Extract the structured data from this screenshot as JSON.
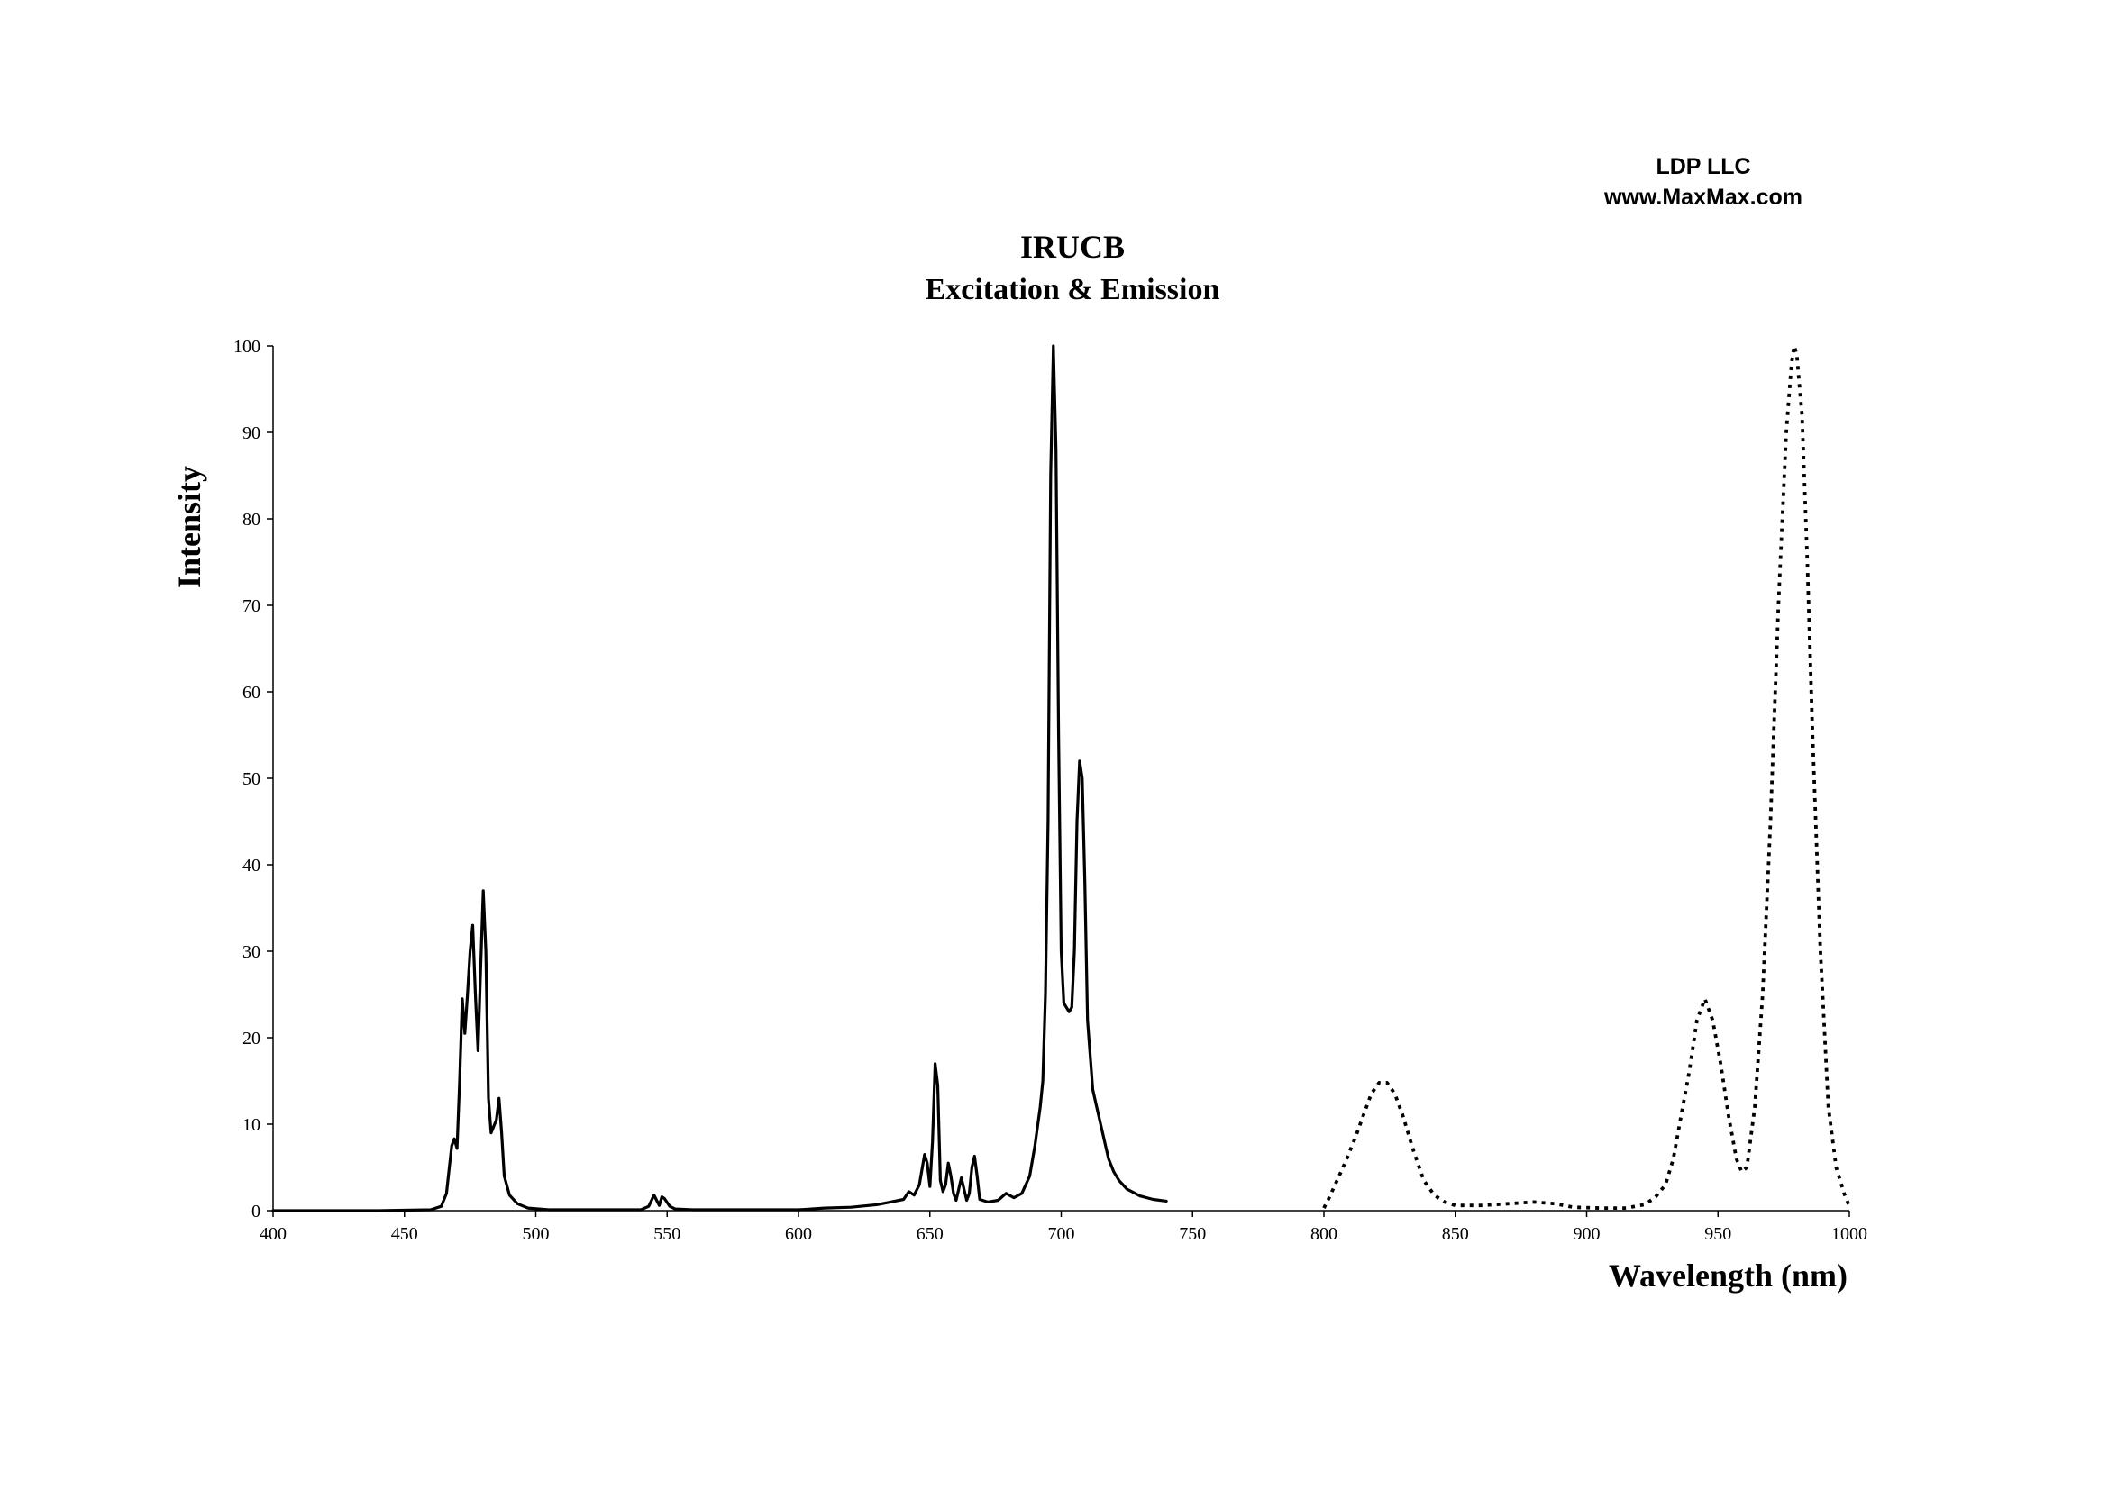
{
  "brand": {
    "line1": "LDP LLC",
    "line2": "www.MaxMax.com"
  },
  "chart_data": {
    "type": "line",
    "title": "IRUCB",
    "subtitle": "Excitation & Emission",
    "xlabel": "Wavelength (nm)",
    "ylabel": "Intensity",
    "xlim": [
      400,
      1000
    ],
    "ylim": [
      0,
      100
    ],
    "x_ticks": [
      400,
      450,
      500,
      550,
      600,
      650,
      700,
      750,
      800,
      850,
      900,
      950,
      1000
    ],
    "y_ticks": [
      0,
      10,
      20,
      30,
      40,
      50,
      60,
      70,
      80,
      90,
      100
    ],
    "grid": false,
    "legend": "none",
    "series": [
      {
        "style": "solid",
        "color": "#000000",
        "points": [
          [
            400,
            0
          ],
          [
            440,
            0
          ],
          [
            460,
            0.1
          ],
          [
            464,
            0.5
          ],
          [
            466,
            2
          ],
          [
            468,
            7.5
          ],
          [
            469,
            8.3
          ],
          [
            470,
            7.2
          ],
          [
            471,
            15
          ],
          [
            472,
            24.5
          ],
          [
            473,
            20.5
          ],
          [
            474,
            25
          ],
          [
            475,
            30
          ],
          [
            476,
            33
          ],
          [
            477,
            25
          ],
          [
            478,
            18.5
          ],
          [
            479,
            28
          ],
          [
            480,
            37
          ],
          [
            481,
            30
          ],
          [
            482,
            13
          ],
          [
            483,
            9
          ],
          [
            485,
            10.5
          ],
          [
            486,
            13
          ],
          [
            487,
            9
          ],
          [
            488,
            4
          ],
          [
            490,
            1.8
          ],
          [
            493,
            0.8
          ],
          [
            497,
            0.3
          ],
          [
            505,
            0.1
          ],
          [
            540,
            0.1
          ],
          [
            543,
            0.5
          ],
          [
            545,
            1.8
          ],
          [
            546,
            1.2
          ],
          [
            547,
            0.6
          ],
          [
            548,
            1.6
          ],
          [
            549,
            1.4
          ],
          [
            551,
            0.5
          ],
          [
            553,
            0.2
          ],
          [
            560,
            0.1
          ],
          [
            600,
            0.1
          ],
          [
            610,
            0.3
          ],
          [
            620,
            0.4
          ],
          [
            630,
            0.7
          ],
          [
            635,
            1.0
          ],
          [
            640,
            1.3
          ],
          [
            642,
            2.2
          ],
          [
            644,
            1.8
          ],
          [
            646,
            3.0
          ],
          [
            648,
            6.5
          ],
          [
            649,
            5.5
          ],
          [
            650,
            2.8
          ],
          [
            651,
            8.0
          ],
          [
            652,
            17
          ],
          [
            653,
            14.5
          ],
          [
            654,
            3.5
          ],
          [
            655,
            2.2
          ],
          [
            656,
            3.0
          ],
          [
            657,
            5.5
          ],
          [
            658,
            4.0
          ],
          [
            659,
            2.0
          ],
          [
            660,
            1.2
          ],
          [
            661,
            2.5
          ],
          [
            662,
            3.8
          ],
          [
            663,
            2.5
          ],
          [
            664,
            1.2
          ],
          [
            665,
            2.0
          ],
          [
            666,
            5.0
          ],
          [
            667,
            6.3
          ],
          [
            668,
            4.0
          ],
          [
            669,
            1.3
          ],
          [
            672,
            1.0
          ],
          [
            676,
            1.2
          ],
          [
            679,
            2.0
          ],
          [
            682,
            1.5
          ],
          [
            685,
            2.0
          ],
          [
            688,
            4.0
          ],
          [
            690,
            7.5
          ],
          [
            692,
            12
          ],
          [
            693,
            15
          ],
          [
            694,
            25
          ],
          [
            695,
            45
          ],
          [
            696,
            85
          ],
          [
            697,
            100
          ],
          [
            698,
            88
          ],
          [
            699,
            55
          ],
          [
            700,
            30
          ],
          [
            701,
            24
          ],
          [
            702,
            23.5
          ],
          [
            703,
            23
          ],
          [
            704,
            23.5
          ],
          [
            705,
            30
          ],
          [
            706,
            45
          ],
          [
            707,
            52
          ],
          [
            708,
            50
          ],
          [
            709,
            38
          ],
          [
            710,
            22
          ],
          [
            712,
            14
          ],
          [
            715,
            10
          ],
          [
            718,
            6
          ],
          [
            720,
            4.5
          ],
          [
            722,
            3.5
          ],
          [
            725,
            2.5
          ],
          [
            730,
            1.7
          ],
          [
            735,
            1.3
          ],
          [
            740,
            1.1
          ]
        ]
      },
      {
        "style": "dotted",
        "color": "#000000",
        "points": [
          [
            800,
            0.3
          ],
          [
            802,
            1.5
          ],
          [
            805,
            3.5
          ],
          [
            808,
            5.5
          ],
          [
            812,
            8.5
          ],
          [
            815,
            11
          ],
          [
            818,
            13.5
          ],
          [
            821,
            14.8
          ],
          [
            824,
            14.8
          ],
          [
            827,
            13.5
          ],
          [
            830,
            11
          ],
          [
            834,
            7
          ],
          [
            838,
            3.5
          ],
          [
            842,
            1.8
          ],
          [
            846,
            1.0
          ],
          [
            850,
            0.6
          ],
          [
            860,
            0.6
          ],
          [
            870,
            0.8
          ],
          [
            880,
            1.0
          ],
          [
            888,
            0.8
          ],
          [
            895,
            0.4
          ],
          [
            905,
            0.3
          ],
          [
            915,
            0.3
          ],
          [
            922,
            0.7
          ],
          [
            926,
            1.5
          ],
          [
            930,
            3
          ],
          [
            933,
            6
          ],
          [
            936,
            11
          ],
          [
            939,
            16
          ],
          [
            942,
            22
          ],
          [
            945,
            24.5
          ],
          [
            948,
            22
          ],
          [
            951,
            17
          ],
          [
            954,
            11
          ],
          [
            957,
            6
          ],
          [
            959,
            4.5
          ],
          [
            961,
            5
          ],
          [
            964,
            12
          ],
          [
            967,
            25
          ],
          [
            970,
            45
          ],
          [
            973,
            70
          ],
          [
            976,
            90
          ],
          [
            978,
            98
          ],
          [
            979,
            100
          ],
          [
            980,
            99
          ],
          [
            982,
            92
          ],
          [
            984,
            75
          ],
          [
            986,
            55
          ],
          [
            989,
            30
          ],
          [
            992,
            12
          ],
          [
            995,
            5
          ],
          [
            998,
            2
          ],
          [
            1000,
            0.5
          ]
        ]
      }
    ]
  }
}
